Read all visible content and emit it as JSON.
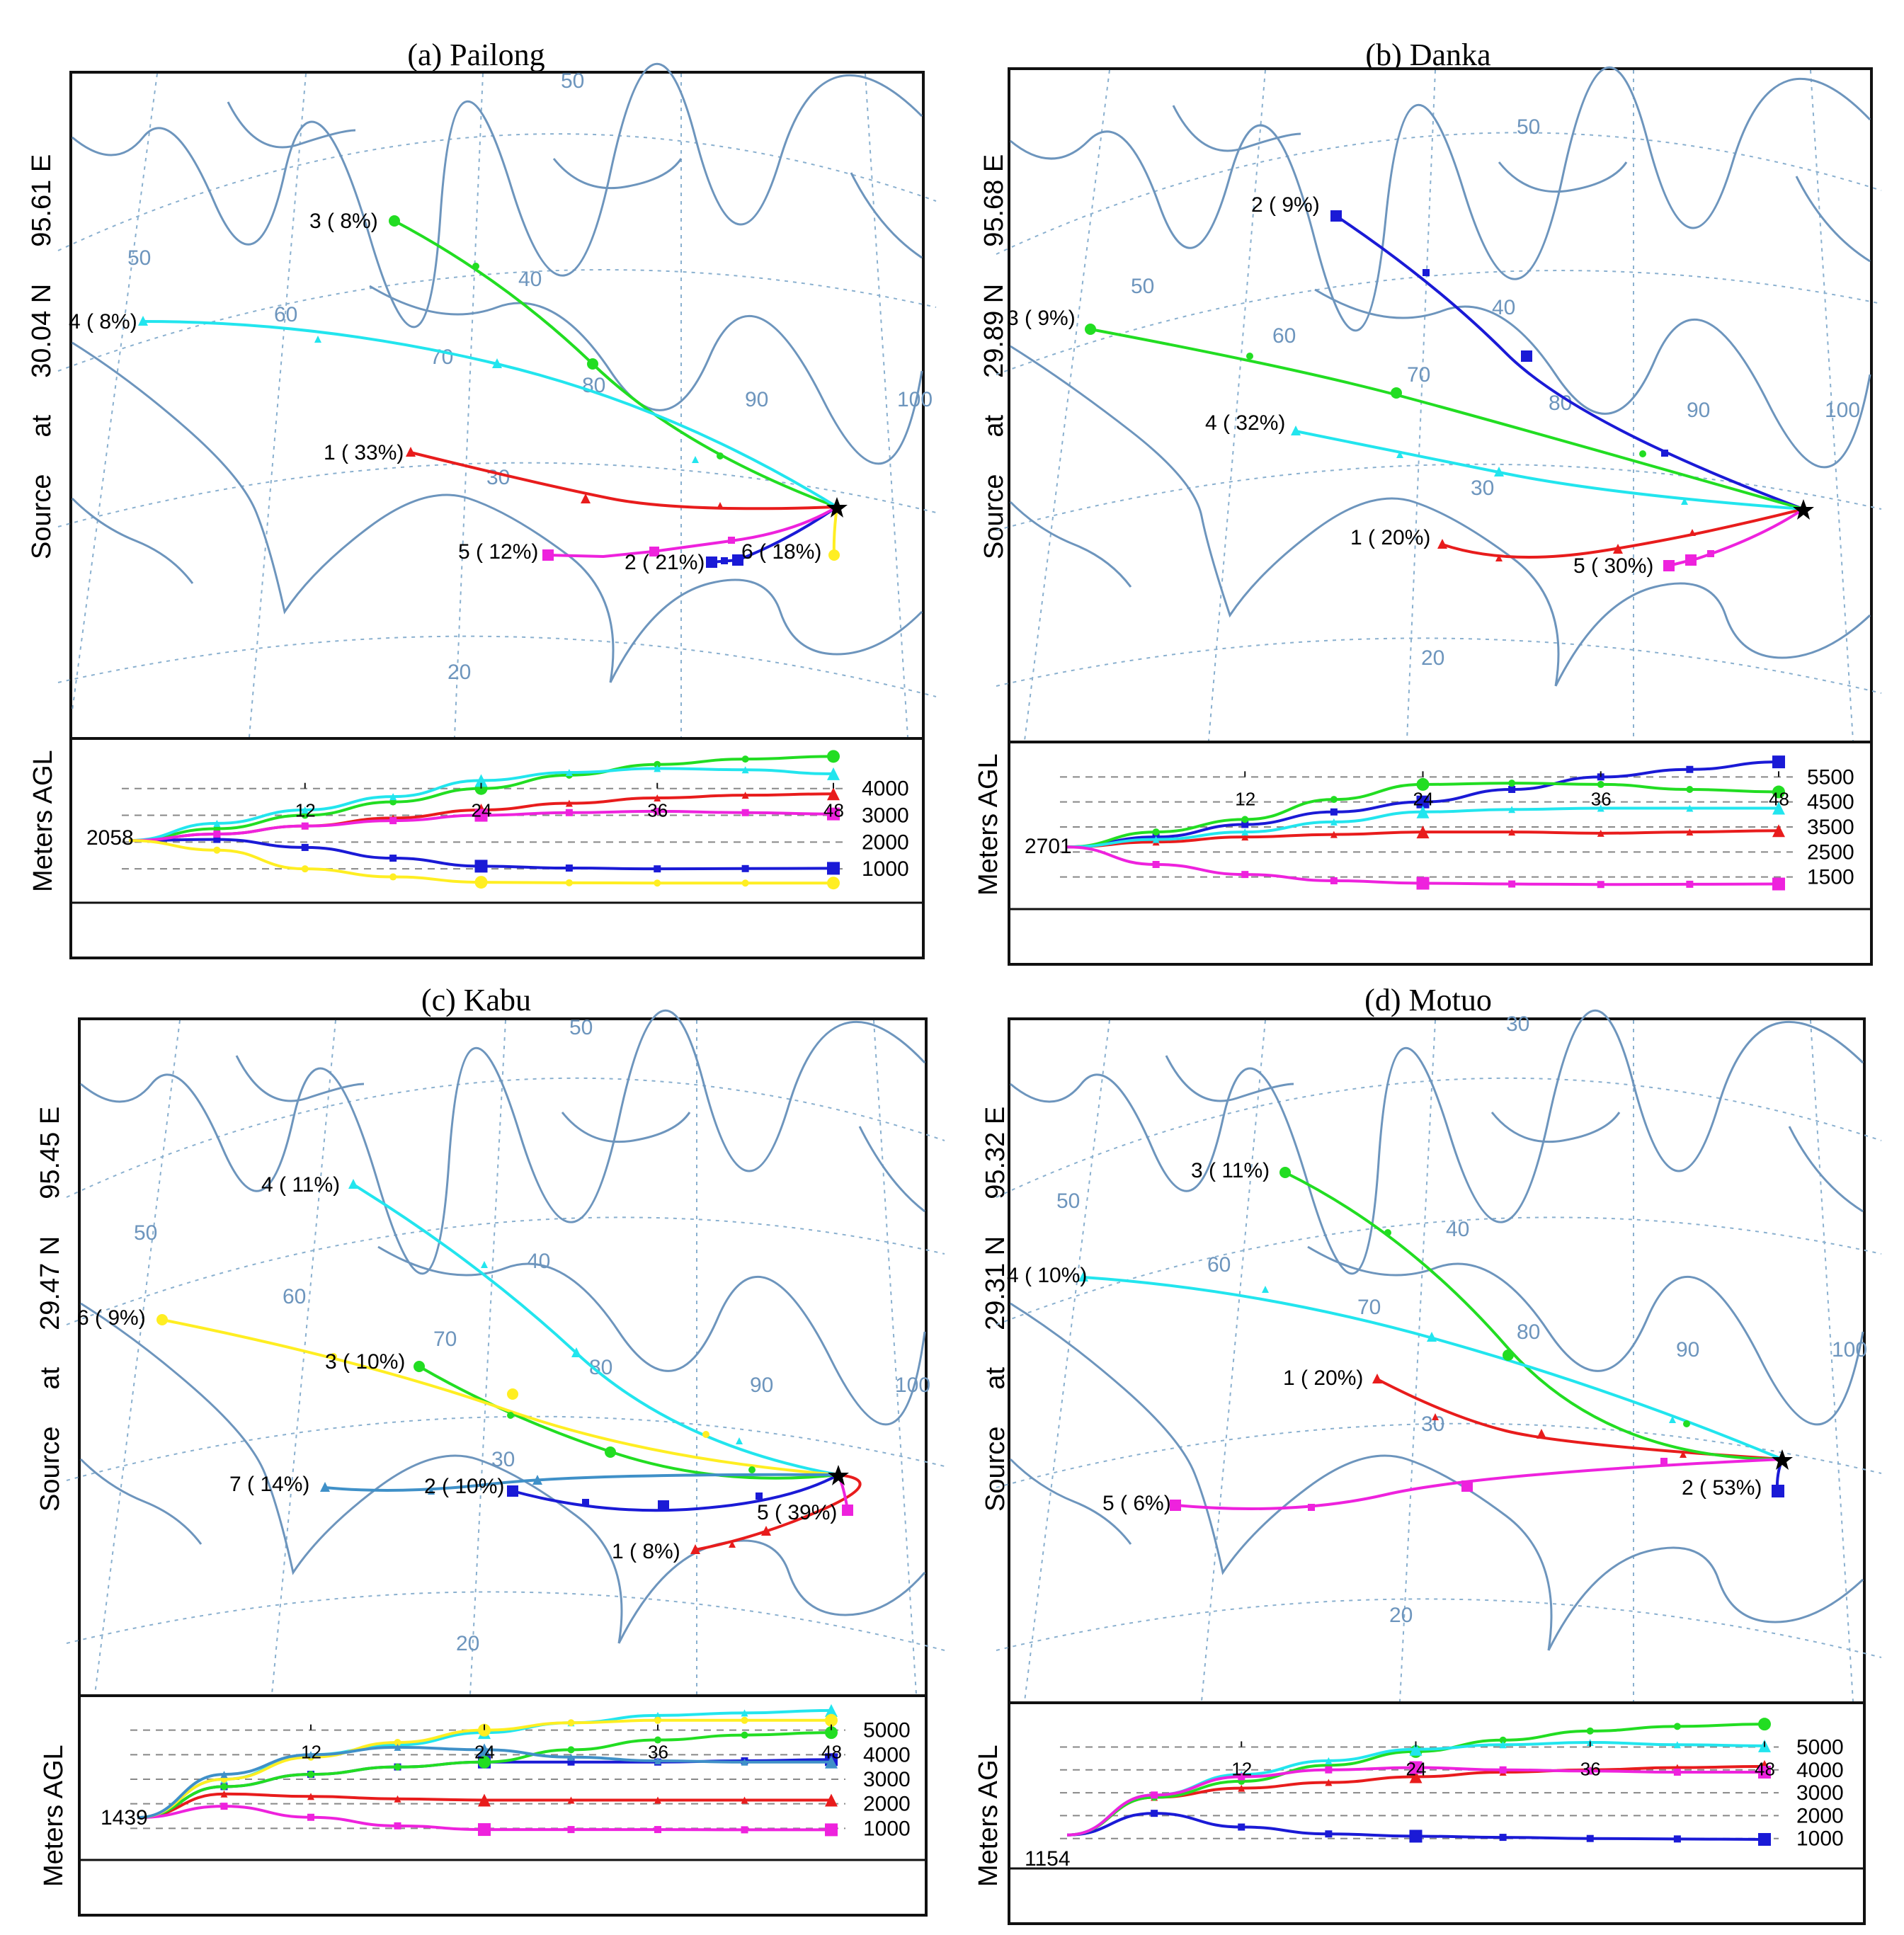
{
  "panels": [
    {
      "id": "a",
      "title": "(a) Pailong",
      "source_label": [
        "Source",
        "at",
        "30.04 N",
        "95.61 E"
      ],
      "graticule_labels": [
        "50",
        "60",
        "70",
        "80",
        "90",
        "100",
        "40",
        "30",
        "20",
        "50"
      ],
      "trajectories": [
        {
          "label": "1 ( 33%)",
          "color": "#e81c1c",
          "marker": "triangle"
        },
        {
          "label": "2 ( 21%)",
          "color": "#1a1ad6",
          "marker": "square"
        },
        {
          "label": "3 ( 8%)",
          "color": "#22dd22",
          "marker": "circle"
        },
        {
          "label": "4 ( 8%)",
          "color": "#22e5ee",
          "marker": "triangle"
        },
        {
          "label": "5 ( 12%)",
          "color": "#ee22dd",
          "marker": "square"
        },
        {
          "label": "6 ( 18%)",
          "color": "#ffee22",
          "marker": "circle"
        }
      ],
      "height_chart": {
        "ylabel": "Meters AGL",
        "start_height": "2058",
        "yticks": [
          "4000",
          "3000",
          "2000",
          "1000"
        ],
        "xticks": [
          "12",
          "24",
          "36",
          "48"
        ]
      },
      "heights": [
        [
          2058,
          2300,
          2600,
          2900,
          3200,
          3450,
          3650,
          3750,
          3800
        ],
        [
          2058,
          2100,
          1800,
          1400,
          1100,
          1030,
          1000,
          1010,
          1020
        ],
        [
          2058,
          2500,
          3000,
          3500,
          4000,
          4500,
          4900,
          5100,
          5200
        ],
        [
          2058,
          2700,
          3200,
          3700,
          4300,
          4600,
          4750,
          4700,
          4550
        ],
        [
          2058,
          2300,
          2600,
          2800,
          3000,
          3100,
          3150,
          3100,
          3050
        ],
        [
          2058,
          1700,
          1000,
          700,
          500,
          480,
          470,
          470,
          470
        ]
      ]
    },
    {
      "id": "b",
      "title": "(b) Danka",
      "source_label": [
        "Source",
        "at",
        "29.89 N",
        "95.68 E"
      ],
      "graticule_labels": [
        "50",
        "60",
        "70",
        "80",
        "90",
        "100",
        "40",
        "30",
        "20",
        "50"
      ],
      "trajectories": [
        {
          "label": "1 ( 20%)",
          "color": "#e81c1c",
          "marker": "triangle"
        },
        {
          "label": "2 ( 9%)",
          "color": "#1a1ad6",
          "marker": "square"
        },
        {
          "label": "3 ( 9%)",
          "color": "#22dd22",
          "marker": "circle"
        },
        {
          "label": "4 ( 32%)",
          "color": "#22e5ee",
          "marker": "triangle"
        },
        {
          "label": "5 ( 30%)",
          "color": "#ee22dd",
          "marker": "square"
        }
      ],
      "height_chart": {
        "ylabel": "Meters AGL",
        "start_height": "2701",
        "yticks": [
          "5500",
          "4500",
          "3500",
          "2500",
          "1500"
        ],
        "xticks": [
          "12",
          "24",
          "36",
          "48"
        ]
      },
      "heights": [
        [
          2701,
          2900,
          3100,
          3200,
          3300,
          3300,
          3250,
          3300,
          3350
        ],
        [
          2701,
          3100,
          3600,
          4100,
          4500,
          5000,
          5500,
          5800,
          6100
        ],
        [
          2701,
          3300,
          3800,
          4600,
          5200,
          5250,
          5200,
          5000,
          4900
        ],
        [
          2701,
          3000,
          3300,
          3700,
          4100,
          4200,
          4250,
          4250,
          4250
        ],
        [
          2701,
          2000,
          1600,
          1350,
          1250,
          1220,
          1200,
          1210,
          1220
        ]
      ]
    },
    {
      "id": "c",
      "title": "(c) Kabu",
      "source_label": [
        "Source",
        "at",
        "29.47 N",
        "95.45 E"
      ],
      "graticule_labels": [
        "50",
        "60",
        "70",
        "80",
        "90",
        "100",
        "40",
        "30",
        "20",
        "50"
      ],
      "trajectories": [
        {
          "label": "1 ( 8%)",
          "color": "#e81c1c",
          "marker": "triangle"
        },
        {
          "label": "2 ( 10%)",
          "color": "#1a1ad6",
          "marker": "square"
        },
        {
          "label": "3 ( 10%)",
          "color": "#22dd22",
          "marker": "circle"
        },
        {
          "label": "4 ( 11%)",
          "color": "#22e5ee",
          "marker": "triangle"
        },
        {
          "label": "5 ( 39%)",
          "color": "#ee22dd",
          "marker": "square"
        },
        {
          "label": "6 ( 9%)",
          "color": "#ffee22",
          "marker": "circle"
        },
        {
          "label": "7 ( 14%)",
          "color": "#3f90c8",
          "marker": "triangle"
        }
      ],
      "height_chart": {
        "ylabel": "Meters AGL",
        "start_height": "1439",
        "yticks": [
          "5000",
          "4000",
          "3000",
          "2000",
          "1000"
        ],
        "xticks": [
          "12",
          "24",
          "36",
          "48"
        ]
      },
      "heights": [
        [
          1439,
          2400,
          2300,
          2200,
          2150,
          2150,
          2150,
          2150,
          2150
        ],
        [
          1439,
          2700,
          3200,
          3500,
          3700,
          3700,
          3700,
          3750,
          3800
        ],
        [
          1439,
          2700,
          3200,
          3500,
          3700,
          4200,
          4600,
          4800,
          4900
        ],
        [
          1439,
          3000,
          4000,
          4400,
          4900,
          5300,
          5600,
          5700,
          5800
        ],
        [
          1439,
          1900,
          1450,
          1100,
          950,
          950,
          950,
          940,
          940
        ],
        [
          1439,
          3000,
          3900,
          4500,
          5000,
          5300,
          5400,
          5400,
          5400
        ],
        [
          1439,
          3200,
          4000,
          4300,
          4200,
          3900,
          3750,
          3700,
          3700
        ]
      ]
    },
    {
      "id": "d",
      "title": "(d) Motuo",
      "source_label": [
        "Source",
        "at",
        "29.31 N",
        "95.32 E"
      ],
      "graticule_labels": [
        "50",
        "60",
        "70",
        "80",
        "90",
        "100",
        "40",
        "30",
        "20",
        "30"
      ],
      "trajectories": [
        {
          "label": "1 ( 20%)",
          "color": "#e81c1c",
          "marker": "triangle"
        },
        {
          "label": "2 ( 53%)",
          "color": "#1a1ad6",
          "marker": "square"
        },
        {
          "label": "3 ( 11%)",
          "color": "#22dd22",
          "marker": "circle"
        },
        {
          "label": "4 ( 10%)",
          "color": "#22e5ee",
          "marker": "triangle"
        },
        {
          "label": "5 ( 6%)",
          "color": "#ee22dd",
          "marker": "square"
        }
      ],
      "height_chart": {
        "ylabel": "Meters AGL",
        "start_height": "1154",
        "yticks": [
          "5000",
          "4000",
          "3000",
          "2000",
          "1000"
        ],
        "xticks": [
          "12",
          "24",
          "36",
          "48"
        ]
      },
      "heights": [
        [
          1154,
          2800,
          3200,
          3450,
          3700,
          3900,
          4000,
          4100,
          4150
        ],
        [
          1154,
          2100,
          1500,
          1200,
          1100,
          1050,
          1000,
          980,
          960
        ],
        [
          1154,
          2800,
          3500,
          4200,
          4800,
          5300,
          5700,
          5900,
          6000
        ],
        [
          1154,
          2900,
          3800,
          4400,
          4900,
          5100,
          5200,
          5100,
          5050
        ],
        [
          1154,
          2900,
          3700,
          4000,
          4100,
          4000,
          3950,
          3900,
          3900
        ]
      ]
    }
  ]
}
